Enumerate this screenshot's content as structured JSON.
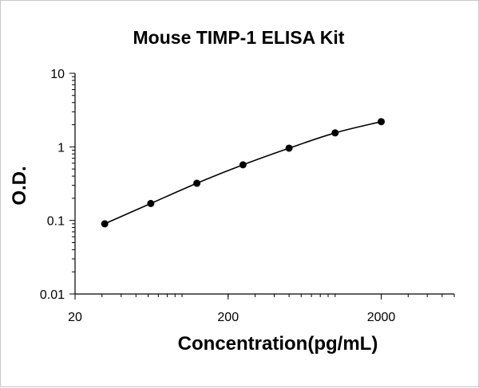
{
  "chart_data": {
    "type": "scatter",
    "title": "Mouse TIMP-1 ELISA Kit",
    "xlabel": "Concentration(pg/mL)",
    "ylabel": "O.D.",
    "x_scale": "log",
    "y_scale": "log",
    "xlim": [
      20,
      6000
    ],
    "ylim": [
      0.01,
      10
    ],
    "x_ticks": [
      {
        "value": 20,
        "label": "20"
      },
      {
        "value": 200,
        "label": "200"
      },
      {
        "value": 2000,
        "label": "2000"
      }
    ],
    "y_ticks": [
      {
        "value": 0.01,
        "label": "0.01"
      },
      {
        "value": 0.1,
        "label": "0.1"
      },
      {
        "value": 1,
        "label": "1"
      },
      {
        "value": 10,
        "label": "10"
      }
    ],
    "grid": false,
    "legend": "none",
    "series": [
      {
        "x": [
          31.25,
          62.5,
          125,
          250,
          500,
          1000,
          2000
        ],
        "y": [
          0.09,
          0.17,
          0.32,
          0.57,
          0.96,
          1.55,
          2.2
        ],
        "style": "markers+smooth-line",
        "color": "#000000"
      }
    ]
  }
}
